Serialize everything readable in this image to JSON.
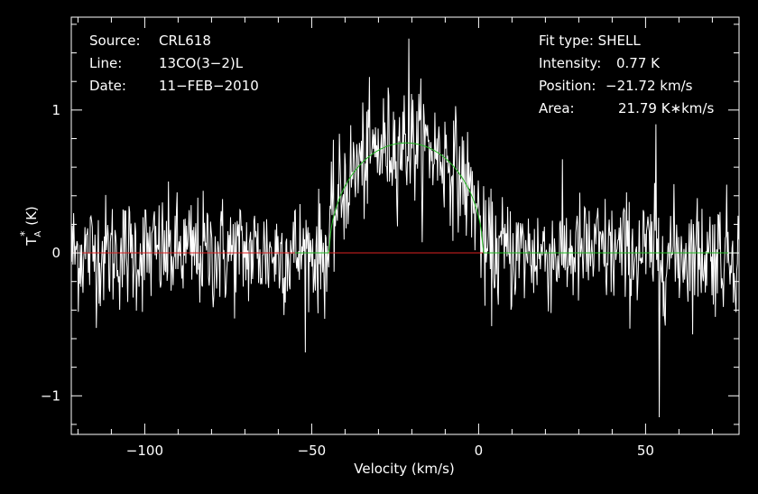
{
  "chart_data": {
    "type": "line",
    "xlabel": "Velocity (km/s)",
    "ylabel_base": "T",
    "ylabel_sub": "A",
    "ylabel_sup": "*",
    "ylabel_unit": "(K)",
    "xlim": [
      -122,
      78
    ],
    "ylim": [
      -1.27,
      1.65
    ],
    "x_ticks": [
      {
        "value": -100,
        "label": "−100"
      },
      {
        "value": -50,
        "label": "−50"
      },
      {
        "value": 0,
        "label": "0"
      },
      {
        "value": 50,
        "label": "50"
      }
    ],
    "y_ticks": [
      {
        "value": -1,
        "label": "−1"
      },
      {
        "value": 0,
        "label": "0"
      },
      {
        "value": 1,
        "label": "1"
      }
    ],
    "grid": false,
    "source_info": {
      "source_label": "Source:",
      "source_value": "CRL618",
      "line_label": "Line:",
      "line_value": "13CO(3−2)L",
      "date_label": "Date:",
      "date_value": "11−FEB−2010"
    },
    "fit_info": {
      "fit_type": "Fit type: SHELL",
      "intensity_label": "Intensity:",
      "intensity_value": "0.77 K",
      "position_label": "Position:",
      "position_value": "−21.72 km/s",
      "area_label": "Area:",
      "area_value": "21.79 K∗km/s"
    },
    "fit": {
      "type": "shell",
      "peak": 0.77,
      "center": -21.72,
      "half_width": 23,
      "color": "#22bb22"
    },
    "spectrum": {
      "color": "#ffffff",
      "noise_rms": 0.2,
      "channels": 1000,
      "notable_spikes": [
        {
          "x": 54,
          "y": -1.15
        },
        {
          "x": 53,
          "y": 0.9
        },
        {
          "x": -21,
          "y": 1.5
        }
      ]
    },
    "baseline": {
      "y": 0,
      "color": "#dd2222"
    },
    "colors": {
      "background": "#000000",
      "frame": "#ffffff",
      "text": "#ffffff"
    }
  }
}
